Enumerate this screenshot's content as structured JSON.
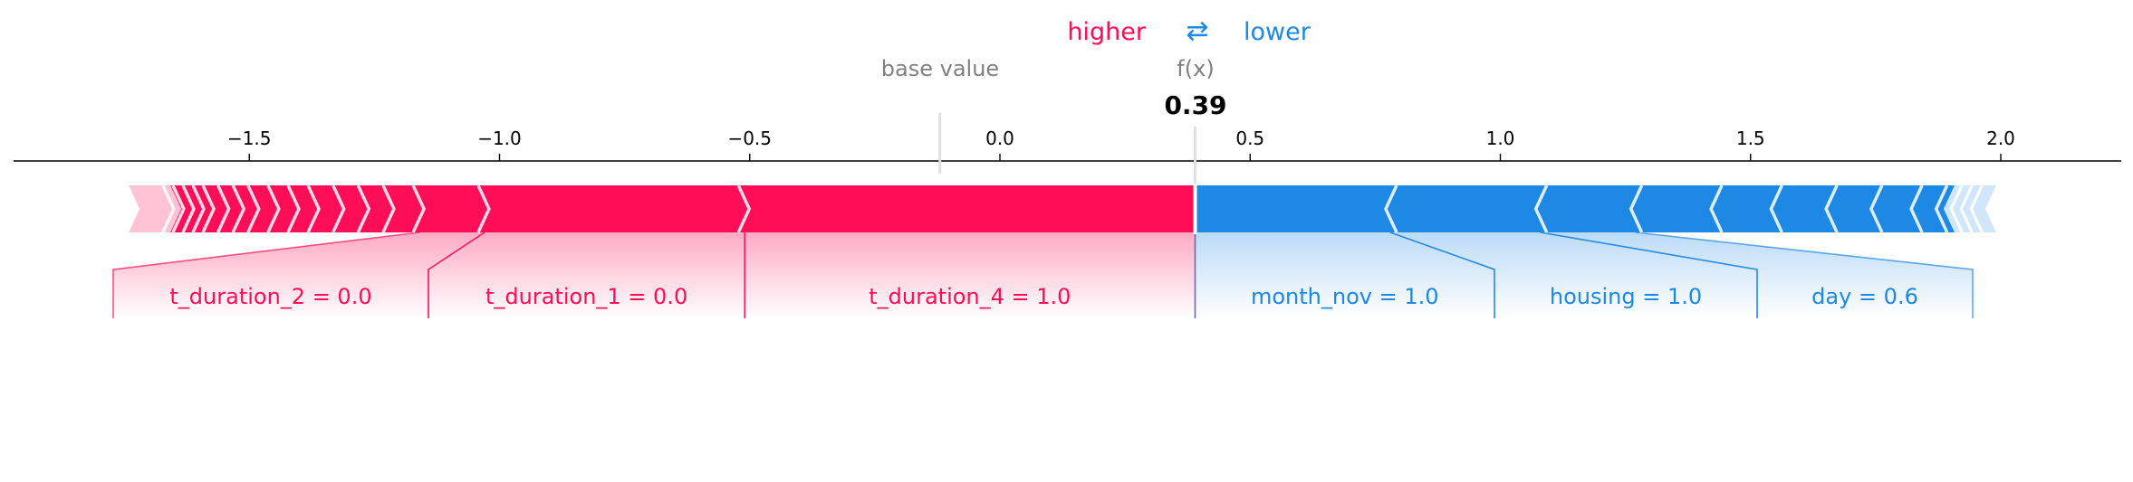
{
  "chart_data": {
    "type": "force",
    "title": "",
    "legend": {
      "higher_label": "higher",
      "lower_label": "lower",
      "arrow_glyph": "⇄",
      "placement": "top-center"
    },
    "base_value_label": "base value",
    "base_value": -0.12,
    "fx_label": "f(x)",
    "output_value": 0.39,
    "output_value_text": "0.39",
    "x_axis": {
      "range": [
        -1.98,
        2.23
      ],
      "ticks": [
        -1.5,
        -1.0,
        -0.5,
        0.0,
        0.5,
        1.0,
        1.5,
        2.0
      ],
      "tick_labels": [
        "−1.5",
        "−1.0",
        "−0.5",
        "0.0",
        "0.5",
        "1.0",
        "1.5",
        "2.0"
      ]
    },
    "colors": {
      "positive": "#ff0d57",
      "negative": "#1e88e5",
      "positive_light": "#ffc3d5",
      "negative_light": "#d1e6fa",
      "muted_text": "#808080",
      "axis": "#000000"
    },
    "positive_extent": [
      -1.73,
      0.39
    ],
    "negative_extent": [
      0.39,
      1.98
    ],
    "positive_separators": [
      -1.66,
      -1.64,
      -1.62,
      -1.6,
      -1.58,
      -1.55,
      -1.52,
      -1.49,
      -1.45,
      -1.41,
      -1.37,
      -1.32,
      -1.27,
      -1.22,
      -1.16,
      -1.03,
      -0.51
    ],
    "negative_separators": [
      0.78,
      1.08,
      1.27,
      1.43,
      1.55,
      1.66,
      1.75,
      1.83,
      1.88,
      1.91,
      1.93,
      1.95
    ],
    "labeled_positive": [
      {
        "label": "t_duration_4 = 1.0",
        "from": -0.51,
        "to": 0.39
      },
      {
        "label": "t_duration_1 = 0.0",
        "from": -1.03,
        "to": -0.51
      },
      {
        "label": "t_duration_2 = 0.0",
        "from": -1.16,
        "to": -1.03
      }
    ],
    "labeled_negative": [
      {
        "label": "month_nov = 1.0",
        "from": 0.39,
        "to": 0.78
      },
      {
        "label": "housing = 1.0",
        "from": 0.78,
        "to": 1.08
      },
      {
        "label": "day = 0.6",
        "from": 1.08,
        "to": 1.27
      }
    ]
  }
}
